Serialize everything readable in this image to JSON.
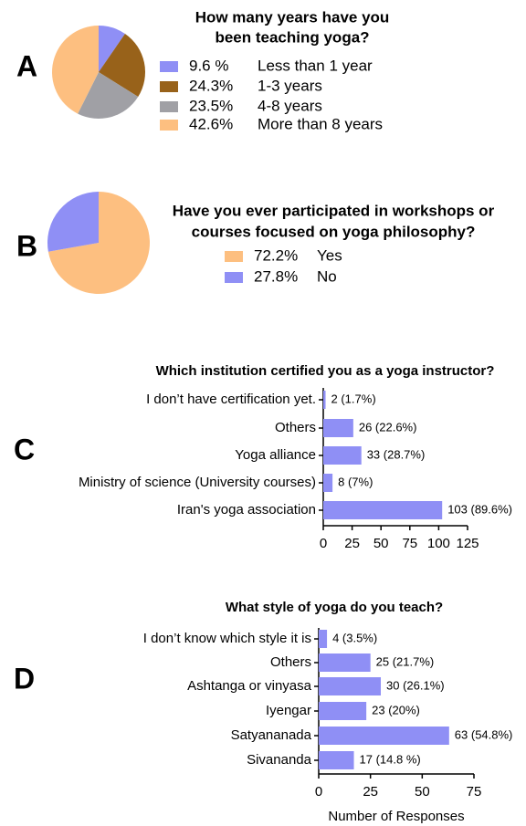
{
  "chart_data": [
    {
      "type": "pie",
      "panel": "A",
      "title": [
        "How many years have you",
        "been teaching yoga?"
      ],
      "categories": [
        "Less than 1 year",
        "1-3 years",
        "4-8 years",
        "More than 8 years"
      ],
      "values": [
        9.6,
        24.3,
        23.5,
        42.6
      ],
      "value_labels": [
        "9.6 %",
        "24.3%",
        "23.5%",
        "42.6%"
      ],
      "colors": [
        "#8f8ff5",
        "#98621a",
        "#a0a0a5",
        "#fdbf80"
      ]
    },
    {
      "type": "pie",
      "panel": "B",
      "title": [
        "Have you ever participated in workshops or",
        "courses focused on yoga philosophy?"
      ],
      "categories": [
        "Yes",
        "No"
      ],
      "values": [
        72.2,
        27.8
      ],
      "value_labels": [
        "72.2%",
        "27.8%"
      ],
      "colors": [
        "#fdbf80",
        "#8f8ff5"
      ]
    },
    {
      "type": "hbar",
      "panel": "C",
      "title": "Which institution certified you  as a yoga instructor?",
      "categories": [
        "I don’t have certification yet.",
        "Others",
        "Yoga alliance",
        "Ministry of science (University courses)",
        "Iran's yoga association"
      ],
      "values": [
        2,
        26,
        33,
        8,
        103
      ],
      "value_labels": [
        "2 (1.7%)",
        "26 (22.6%)",
        "33 (28.7%)",
        "8 (7%)",
        "103 (89.6%)"
      ],
      "color": "#8f8ff5",
      "xlim": [
        0,
        125
      ],
      "xticks": [
        0,
        25,
        50,
        75,
        100,
        125
      ]
    },
    {
      "type": "hbar",
      "panel": "D",
      "title": "What style of yoga do you teach?",
      "categories": [
        "I don’t know which style it is",
        "Others",
        "Ashtanga or vinyasa",
        "Iyengar",
        "Satyananada",
        "Sivananda"
      ],
      "values": [
        4,
        25,
        30,
        23,
        63,
        17
      ],
      "value_labels": [
        "4 (3.5%)",
        "25 (21.7%)",
        "30 (26.1%)",
        "23 (20%)",
        "63 (54.8%)",
        "17 (14.8 %)"
      ],
      "color": "#8f8ff5",
      "xlim": [
        0,
        75
      ],
      "xticks": [
        0,
        25,
        50,
        75
      ],
      "xlabel": "Number of Responses"
    }
  ]
}
